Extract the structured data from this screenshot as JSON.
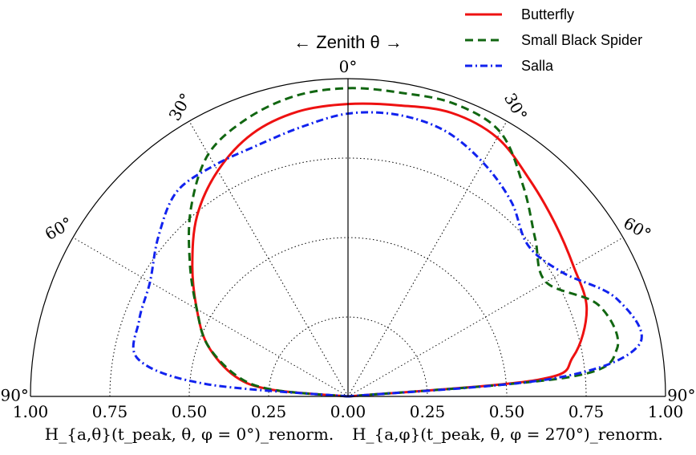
{
  "chart_data": {
    "type": "polar-half",
    "title": "← Zenith θ →",
    "angle_unit": "degree",
    "radial_range": [
      0,
      1.0
    ],
    "angle_range": [
      0,
      90
    ],
    "radial_ticks": [
      "1.00",
      "0.75",
      "0.50",
      "0.25",
      "0.00",
      "0.25",
      "0.50",
      "0.75",
      "1.00"
    ],
    "angle_ticks": [
      {
        "label": "0°",
        "angle": 0,
        "side": "center"
      },
      {
        "label": "30°",
        "angle": 30,
        "side": "left"
      },
      {
        "label": "60°",
        "angle": 60,
        "side": "left"
      },
      {
        "label": "90°",
        "angle": 90,
        "side": "left"
      },
      {
        "label": "30°",
        "angle": 30,
        "side": "right"
      },
      {
        "label": "60°",
        "angle": 60,
        "side": "right"
      },
      {
        "label": "90°",
        "angle": 90,
        "side": "right"
      }
    ],
    "xlabel_left": "H_{a,θ}(t_peak, θ, φ = 0°)_renorm.",
    "xlabel_right": "H_{a,φ}(t_peak, θ, φ = 270°)_renorm.",
    "legend_position": "top-right",
    "series": [
      {
        "name": "Butterfly",
        "color": "#ee1111",
        "dash": "solid",
        "left": [
          [
            0,
            0.92
          ],
          [
            10,
            0.91
          ],
          [
            20,
            0.88
          ],
          [
            30,
            0.82
          ],
          [
            40,
            0.74
          ],
          [
            50,
            0.64
          ],
          [
            60,
            0.55
          ],
          [
            70,
            0.47
          ],
          [
            80,
            0.36
          ],
          [
            85,
            0.24
          ],
          [
            90,
            0.0
          ]
        ],
        "right": [
          [
            0,
            0.92
          ],
          [
            10,
            0.93
          ],
          [
            20,
            0.95
          ],
          [
            30,
            0.94
          ],
          [
            40,
            0.89
          ],
          [
            50,
            0.85
          ],
          [
            60,
            0.82
          ],
          [
            70,
            0.8
          ],
          [
            80,
            0.72
          ],
          [
            85,
            0.6
          ],
          [
            90,
            0.0
          ]
        ]
      },
      {
        "name": "Small Black Spider",
        "color": "#116611",
        "dash": "dashed",
        "left": [
          [
            0,
            0.97
          ],
          [
            10,
            0.96
          ],
          [
            20,
            0.93
          ],
          [
            30,
            0.88
          ],
          [
            40,
            0.77
          ],
          [
            50,
            0.65
          ],
          [
            60,
            0.55
          ],
          [
            70,
            0.47
          ],
          [
            80,
            0.35
          ],
          [
            85,
            0.23
          ],
          [
            90,
            0.0
          ]
        ],
        "right": [
          [
            0,
            0.97
          ],
          [
            10,
            0.97
          ],
          [
            20,
            0.98
          ],
          [
            30,
            0.96
          ],
          [
            40,
            0.86
          ],
          [
            50,
            0.77
          ],
          [
            60,
            0.72
          ],
          [
            70,
            0.84
          ],
          [
            80,
            0.86
          ],
          [
            85,
            0.7
          ],
          [
            90,
            0.0
          ]
        ]
      },
      {
        "name": "Salla",
        "color": "#1122ee",
        "dash": "dashdot",
        "left": [
          [
            0,
            0.89
          ],
          [
            10,
            0.86
          ],
          [
            20,
            0.84
          ],
          [
            30,
            0.84
          ],
          [
            40,
            0.84
          ],
          [
            50,
            0.78
          ],
          [
            60,
            0.72
          ],
          [
            70,
            0.7
          ],
          [
            80,
            0.67
          ],
          [
            85,
            0.45
          ],
          [
            90,
            0.0
          ]
        ],
        "right": [
          [
            0,
            0.89
          ],
          [
            10,
            0.9
          ],
          [
            20,
            0.89
          ],
          [
            30,
            0.85
          ],
          [
            40,
            0.8
          ],
          [
            50,
            0.74
          ],
          [
            60,
            0.78
          ],
          [
            70,
            0.9
          ],
          [
            80,
            0.93
          ],
          [
            85,
            0.65
          ],
          [
            90,
            0.0
          ]
        ]
      }
    ]
  }
}
